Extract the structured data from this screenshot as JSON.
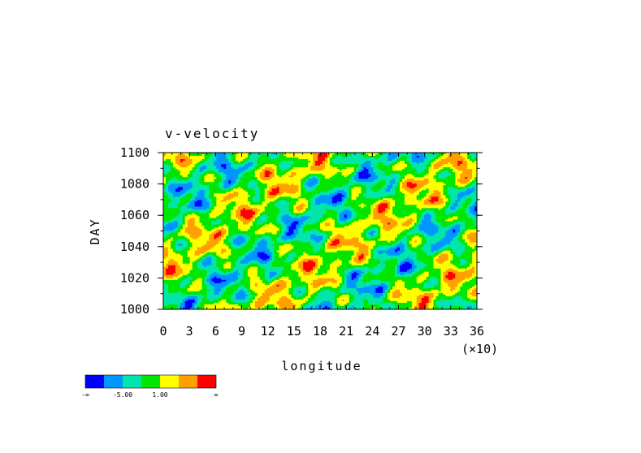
{
  "chart_data": {
    "type": "heatmap",
    "title": "v-velocity",
    "xlabel": "longitude",
    "ylabel": "DAY",
    "x_multiplier_label": "(×10)",
    "xlim": [
      0,
      36
    ],
    "ylim": [
      1000,
      1100
    ],
    "x_tick_labels": [
      "0",
      "3",
      "6",
      "9",
      "12",
      "15",
      "18",
      "21",
      "24",
      "27",
      "30",
      "33",
      "36"
    ],
    "y_tick_labels": [
      "1000",
      "1020",
      "1040",
      "1060",
      "1080",
      "1100"
    ],
    "colorbar": {
      "colors": [
        "#0000ff",
        "#0096ff",
        "#00e6aa",
        "#00e600",
        "#ffff00",
        "#ffa000",
        "#ff0000"
      ],
      "labels": [
        "-∞",
        "-5.00",
        "1.00",
        "∞"
      ]
    }
  }
}
